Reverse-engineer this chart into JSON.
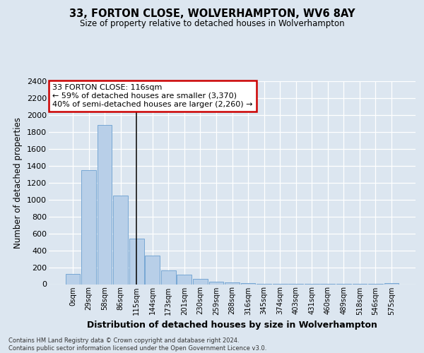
{
  "title": "33, FORTON CLOSE, WOLVERHAMPTON, WV6 8AY",
  "subtitle": "Size of property relative to detached houses in Wolverhampton",
  "xlabel": "Distribution of detached houses by size in Wolverhampton",
  "ylabel": "Number of detached properties",
  "bar_labels": [
    "0sqm",
    "29sqm",
    "58sqm",
    "86sqm",
    "115sqm",
    "144sqm",
    "173sqm",
    "201sqm",
    "230sqm",
    "259sqm",
    "288sqm",
    "316sqm",
    "345sqm",
    "374sqm",
    "403sqm",
    "431sqm",
    "460sqm",
    "489sqm",
    "518sqm",
    "546sqm",
    "575sqm"
  ],
  "bar_values": [
    120,
    1350,
    1880,
    1050,
    540,
    340,
    160,
    110,
    60,
    30,
    20,
    15,
    8,
    5,
    3,
    2,
    2,
    2,
    2,
    2,
    15
  ],
  "bar_color": "#b8cfe8",
  "bar_edge_color": "#6a9fd0",
  "vline_x_index": 4,
  "vline_color": "#111111",
  "annotation_text": "33 FORTON CLOSE: 116sqm\n← 59% of detached houses are smaller (3,370)\n40% of semi-detached houses are larger (2,260) →",
  "annotation_box_color": "#ffffff",
  "annotation_box_edge": "#cc0000",
  "ylim": [
    0,
    2400
  ],
  "yticks": [
    0,
    200,
    400,
    600,
    800,
    1000,
    1200,
    1400,
    1600,
    1800,
    2000,
    2200,
    2400
  ],
  "footer_line1": "Contains HM Land Registry data © Crown copyright and database right 2024.",
  "footer_line2": "Contains public sector information licensed under the Open Government Licence v3.0.",
  "bg_color": "#dce6f0",
  "plot_bg_color": "#dce6f0",
  "grid_color": "#ffffff"
}
